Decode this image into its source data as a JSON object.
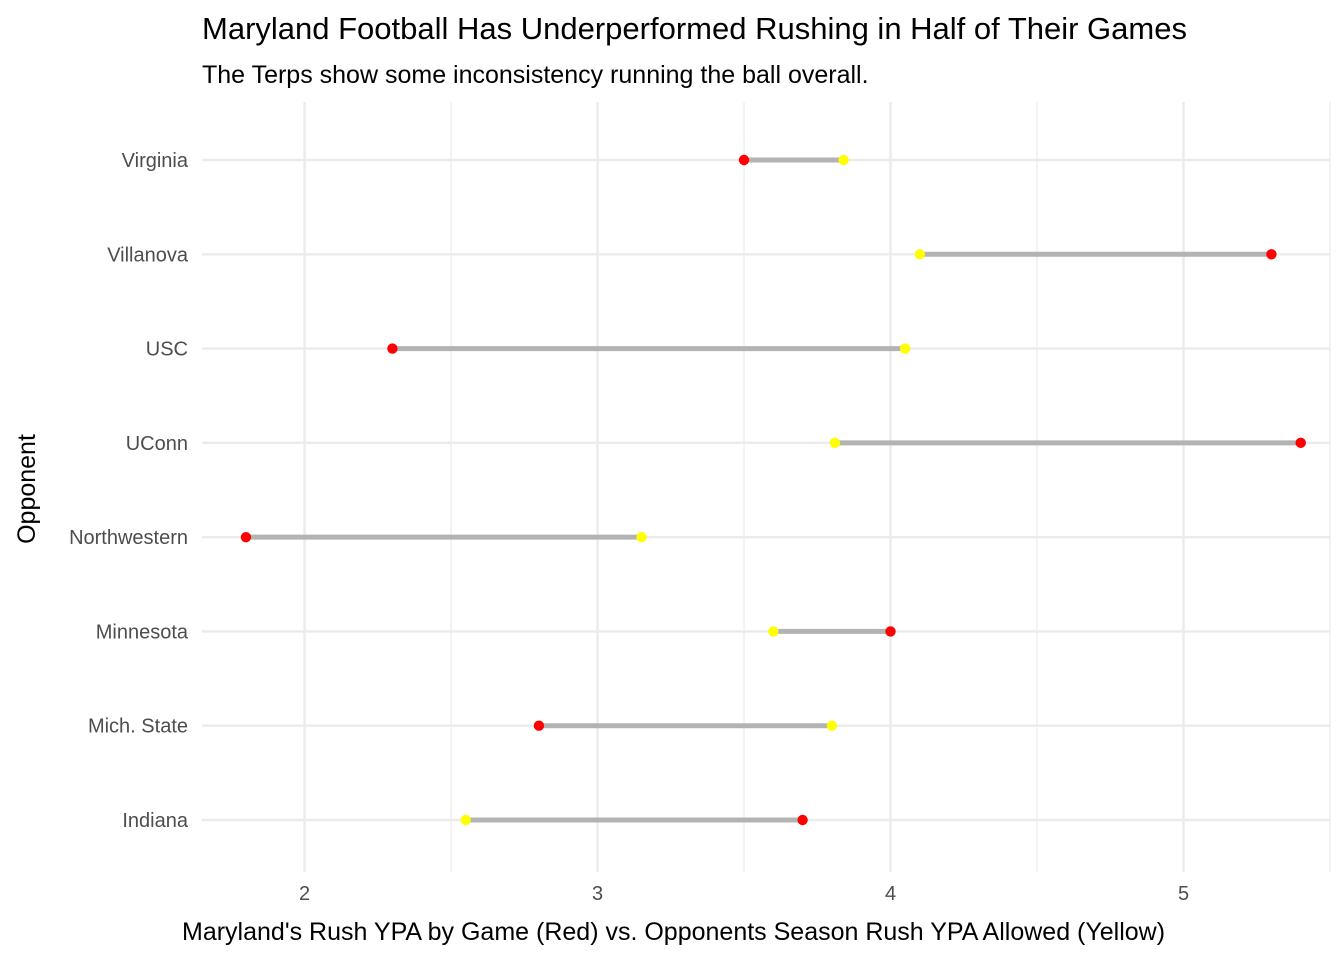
{
  "chart_data": {
    "type": "dumbbell",
    "title": "Maryland Football Has Underperformed Rushing in Half of Their Games",
    "subtitle": "The Terps show some inconsistency running the ball overall.",
    "xlabel": "Maryland's Rush YPA by Game (Red) vs. Opponents Season Rush YPA Allowed (Yellow)",
    "ylabel": "Opponent",
    "xlim": [
      1.65,
      5.5
    ],
    "x_ticks": [
      2,
      3,
      4,
      5
    ],
    "categories": [
      "Indiana",
      "Mich. State",
      "Minnesota",
      "Northwestern",
      "UConn",
      "USC",
      "Villanova",
      "Virginia"
    ],
    "series": [
      {
        "name": "Maryland's Rush YPA by Game",
        "color": "#ff0000",
        "values": [
          3.7,
          2.8,
          4.0,
          1.8,
          5.4,
          2.3,
          5.3,
          3.5
        ]
      },
      {
        "name": "Opponents Season Rush YPA Allowed",
        "color": "#ffff00",
        "values": [
          2.55,
          3.8,
          3.6,
          3.15,
          3.81,
          4.05,
          4.1,
          3.84
        ]
      }
    ],
    "segment_color": "#b3b3b3",
    "grid": true,
    "legend": "none"
  }
}
